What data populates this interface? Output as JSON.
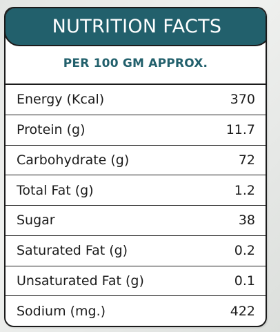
{
  "header": {
    "title": "NUTRITION FACTS",
    "subtitle": "PER 100 GM APPROX."
  },
  "colors": {
    "header_bg": "#22606c",
    "subtitle_text": "#22606c",
    "border": "#1b1b1b"
  },
  "rows": [
    {
      "label": "Energy (Kcal)",
      "value": "370"
    },
    {
      "label": "Protein (g)",
      "value": "11.7"
    },
    {
      "label": "Carbohydrate (g)",
      "value": "72"
    },
    {
      "label": "Total Fat (g)",
      "value": "1.2"
    },
    {
      "label": "Sugar",
      "value": "38"
    },
    {
      "label": "Saturated Fat (g)",
      "value": "0.2"
    },
    {
      "label": "Unsaturated Fat (g)",
      "value": "0.1"
    },
    {
      "label": "Sodium (mg.)",
      "value": "422"
    }
  ]
}
